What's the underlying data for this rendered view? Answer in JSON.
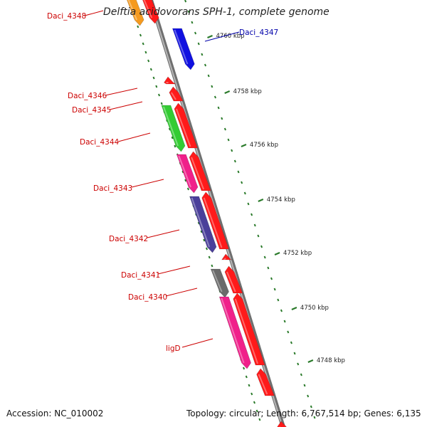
{
  "title": "Delftia acidovorans SPH-1, complete genome",
  "footer": {
    "accession": "Accession: NC_010002",
    "stats": "Topology: circular; Length: 6,767,514 bp; Genes: 6,135"
  },
  "colors": {
    "backbone": "#8a8a8a",
    "tick": "#2a7a2a",
    "forward_label": "#cc0000",
    "reverse_label": "#0000aa"
  },
  "ticks": [
    {
      "label": "4760 kbp"
    },
    {
      "label": "4758 kbp"
    },
    {
      "label": "4756 kbp"
    },
    {
      "label": "4754 kbp"
    },
    {
      "label": "4752 kbp"
    },
    {
      "label": "4750 kbp"
    },
    {
      "label": "4748 kbp"
    }
  ],
  "gene_labels": [
    {
      "text": "Daci_4348"
    },
    {
      "text": "Daci_4347"
    },
    {
      "text": "Daci_4346"
    },
    {
      "text": "Daci_4345"
    },
    {
      "text": "Daci_4344"
    },
    {
      "text": "Daci_4343"
    },
    {
      "text": "Daci_4342"
    },
    {
      "text": "Daci_4341"
    },
    {
      "text": "Daci_4340"
    },
    {
      "text": "ligD"
    }
  ]
}
